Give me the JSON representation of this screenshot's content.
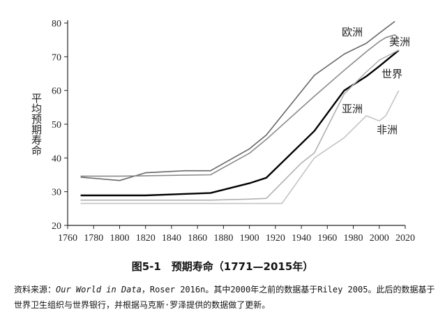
{
  "chart_data": {
    "type": "line",
    "title": "",
    "xlabel": "",
    "ylabel": "平均预期寿命",
    "xlim": [
      1760,
      2020
    ],
    "ylim": [
      20,
      80
    ],
    "x_ticks": [
      1760,
      1780,
      1800,
      1820,
      1840,
      1860,
      1880,
      1900,
      1920,
      1940,
      1960,
      1980,
      2000,
      2020
    ],
    "y_ticks": [
      20,
      30,
      40,
      50,
      60,
      70,
      80
    ],
    "grid": false,
    "legend": "inline labels at line ends",
    "series": [
      {
        "name": "欧洲",
        "color": "#666666",
        "x": [
          1770,
          1800,
          1820,
          1850,
          1870,
          1900,
          1913,
          1950,
          1973,
          1990,
          2000,
          2012
        ],
        "y": [
          34.3,
          33.3,
          35.6,
          36.2,
          36.2,
          42.7,
          46.8,
          64.5,
          70.8,
          74,
          77,
          80.5
        ]
      },
      {
        "name": "美洲",
        "color": "#8a8a8a",
        "x": [
          1770,
          1800,
          1820,
          1870,
          1900,
          1913,
          1950,
          1973,
          1990,
          2000,
          2005,
          2012,
          2015
        ],
        "y": [
          34.6,
          34.6,
          34.7,
          35.0,
          41.4,
          45.5,
          58.3,
          66.0,
          71.5,
          74.5,
          75.7,
          76.5,
          75.5
        ]
      },
      {
        "name": "世界",
        "color": "#000000",
        "x": [
          1770,
          1800,
          1820,
          1870,
          1900,
          1913,
          1950,
          1973,
          1990,
          2000,
          2015
        ],
        "y": [
          28.9,
          28.9,
          28.9,
          29.6,
          32.5,
          34.1,
          48.0,
          60.0,
          64.2,
          67.2,
          71.9
        ]
      },
      {
        "name": "亚洲",
        "color": "#b0b0b0",
        "x": [
          1770,
          1800,
          1820,
          1870,
          1900,
          1913,
          1940,
          1950,
          1973,
          1990,
          2000,
          2015
        ],
        "y": [
          27.5,
          27.5,
          27.5,
          27.5,
          27.8,
          28.0,
          38.5,
          41.5,
          59.0,
          65.5,
          69.0,
          72.0
        ]
      },
      {
        "name": "非洲",
        "color": "#c4c4c4",
        "x": [
          1770,
          1800,
          1820,
          1870,
          1900,
          1913,
          1925,
          1950,
          1973,
          1990,
          2000,
          2005,
          2015
        ],
        "y": [
          26.5,
          26.5,
          26.5,
          26.5,
          26.5,
          26.5,
          26.5,
          40.0,
          46.0,
          52.5,
          51.0,
          52.5,
          60.0
        ]
      }
    ]
  },
  "caption": "图5-1　预期寿命（1771—2015年）",
  "source_note": {
    "prefix": "资料来源：",
    "source_name": "Our World in Data",
    "rest": "，Roser 2016n。其中2000年之前的数据基于Riley 2005。此后的数据基于世界卫生组织与世界银行，并根据马克斯·罗泽提供的数据做了更新。"
  }
}
